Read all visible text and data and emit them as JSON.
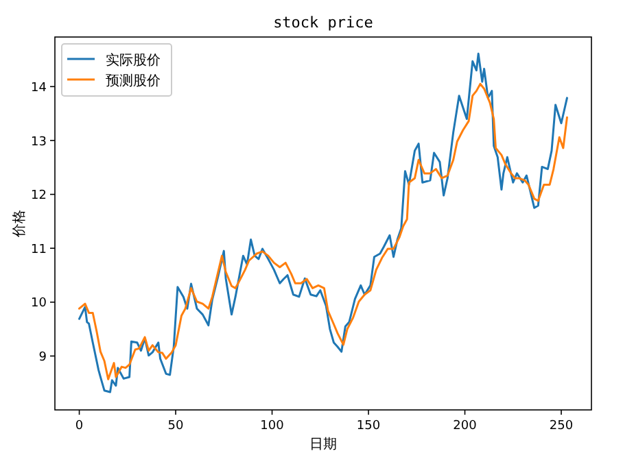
{
  "chart_data": {
    "type": "line",
    "title": "stock price",
    "xlabel": "日期",
    "ylabel": "价格",
    "xlim": [
      -12.65,
      265.65
    ],
    "ylim": [
      8.0,
      14.92
    ],
    "xticks": [
      0,
      50,
      100,
      150,
      200,
      250
    ],
    "yticks": [
      9,
      10,
      11,
      12,
      13,
      14
    ],
    "legend": "top left",
    "grid": false,
    "marker": "none",
    "line_style": "solid",
    "series": [
      {
        "name": "实际股价",
        "color": "#1f77b4",
        "x": [
          0,
          3,
          4,
          5,
          7,
          10,
          11,
          13,
          16,
          17,
          19,
          20,
          23,
          26,
          27,
          30,
          32,
          34,
          36,
          38,
          41,
          42,
          45,
          47,
          49,
          51,
          54,
          56,
          58,
          61,
          64,
          67,
          69,
          72,
          75,
          76,
          79,
          81,
          85,
          87,
          89,
          91,
          93,
          95,
          98,
          101,
          104,
          106,
          108,
          111,
          114,
          117,
          120,
          123,
          125,
          128,
          130,
          132,
          134,
          136,
          138,
          140,
          143,
          146,
          148,
          151,
          153,
          156,
          158,
          161,
          163,
          165,
          167,
          169,
          171,
          174,
          176,
          178,
          182,
          184,
          187,
          189,
          191,
          194,
          197,
          201,
          204,
          206,
          207,
          209,
          210,
          212,
          214,
          215,
          217,
          219,
          220,
          222,
          225,
          227,
          230,
          232,
          234,
          236,
          238,
          240,
          243,
          245,
          247,
          250,
          253
        ],
        "values": [
          9.69,
          9.91,
          9.63,
          9.6,
          9.25,
          8.74,
          8.61,
          8.36,
          8.33,
          8.55,
          8.45,
          8.78,
          8.58,
          8.61,
          9.27,
          9.25,
          9.1,
          9.33,
          9.01,
          9.07,
          9.25,
          8.95,
          8.67,
          8.65,
          9.17,
          10.28,
          10.1,
          9.88,
          10.34,
          9.88,
          9.77,
          9.57,
          10.05,
          10.48,
          10.95,
          10.44,
          9.77,
          10.1,
          10.86,
          10.7,
          11.16,
          10.86,
          10.8,
          10.99,
          10.8,
          10.6,
          10.35,
          10.43,
          10.5,
          10.14,
          10.1,
          10.44,
          10.14,
          10.11,
          10.22,
          9.93,
          9.5,
          9.25,
          9.17,
          9.08,
          9.55,
          9.63,
          10.06,
          10.31,
          10.14,
          10.31,
          10.84,
          10.9,
          11.03,
          11.24,
          10.84,
          11.16,
          11.37,
          12.43,
          12.18,
          12.81,
          12.94,
          12.22,
          12.26,
          12.77,
          12.6,
          11.98,
          12.3,
          13.15,
          13.83,
          13.4,
          14.47,
          14.3,
          14.61,
          14.09,
          14.33,
          13.79,
          13.92,
          12.9,
          12.69,
          12.09,
          12.39,
          12.69,
          12.22,
          12.39,
          12.22,
          12.35,
          12.05,
          11.75,
          11.79,
          12.51,
          12.47,
          12.81,
          13.66,
          13.32,
          13.79
        ]
      },
      {
        "name": "预测股价",
        "color": "#ff7f0e",
        "x": [
          0,
          3,
          5,
          7,
          9,
          11,
          13,
          15,
          18,
          19,
          22,
          24,
          26,
          29,
          31,
          34,
          36,
          38,
          41,
          43,
          45,
          48,
          50,
          53,
          55,
          58,
          61,
          64,
          67,
          69,
          72,
          74,
          76,
          79,
          81,
          83,
          86,
          88,
          92,
          95,
          98,
          101,
          104,
          107,
          110,
          112,
          115,
          118,
          121,
          124,
          127,
          129,
          132,
          134,
          137,
          139,
          142,
          145,
          148,
          151,
          154,
          157,
          160,
          163,
          166,
          168,
          170,
          171,
          174,
          176,
          179,
          182,
          185,
          188,
          191,
          194,
          196,
          199,
          202,
          204,
          206,
          208,
          210,
          213,
          215,
          216,
          219,
          221,
          224,
          226,
          228,
          231,
          233,
          236,
          238,
          241,
          244,
          246,
          249,
          251,
          253
        ],
        "values": [
          9.88,
          9.97,
          9.8,
          9.8,
          9.46,
          9.08,
          8.91,
          8.57,
          8.87,
          8.61,
          8.8,
          8.78,
          8.84,
          9.12,
          9.14,
          9.35,
          9.1,
          9.2,
          9.07,
          9.06,
          8.95,
          9.07,
          9.2,
          9.75,
          9.88,
          10.26,
          10.01,
          9.97,
          9.88,
          10.1,
          10.56,
          10.86,
          10.56,
          10.3,
          10.26,
          10.39,
          10.6,
          10.77,
          10.9,
          10.94,
          10.86,
          10.73,
          10.65,
          10.73,
          10.52,
          10.35,
          10.35,
          10.43,
          10.26,
          10.31,
          10.26,
          9.84,
          9.59,
          9.42,
          9.21,
          9.5,
          9.71,
          10.01,
          10.14,
          10.22,
          10.6,
          10.82,
          10.99,
          10.99,
          11.2,
          11.41,
          11.54,
          12.22,
          12.3,
          12.64,
          12.39,
          12.39,
          12.47,
          12.3,
          12.35,
          12.64,
          12.98,
          13.19,
          13.36,
          13.83,
          13.92,
          14.05,
          13.96,
          13.7,
          13.4,
          12.86,
          12.73,
          12.56,
          12.39,
          12.3,
          12.3,
          12.26,
          12.18,
          11.92,
          11.88,
          12.18,
          12.18,
          12.47,
          13.06,
          12.86,
          13.43
        ]
      }
    ]
  }
}
